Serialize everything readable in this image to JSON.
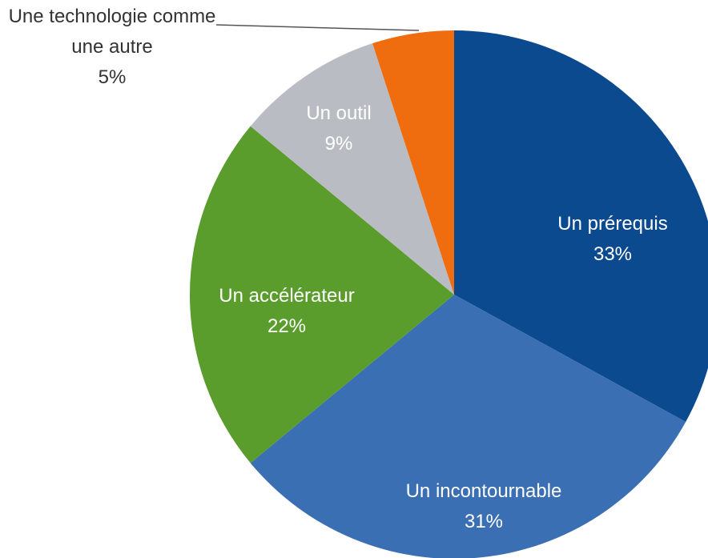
{
  "chart_data": {
    "type": "pie",
    "categories": [
      "Un prérequis",
      "Un incontournable",
      "Un accélérateur",
      "Un outil",
      "Une technologie comme une autre"
    ],
    "values": [
      33,
      31,
      22,
      9,
      5
    ],
    "value_labels": [
      "33%",
      "31%",
      "22%",
      "9%",
      "5%"
    ],
    "colors": [
      "#0b4a8e",
      "#3b6fb3",
      "#5a9d2c",
      "#b9bdc3",
      "#ef6c0f"
    ]
  }
}
